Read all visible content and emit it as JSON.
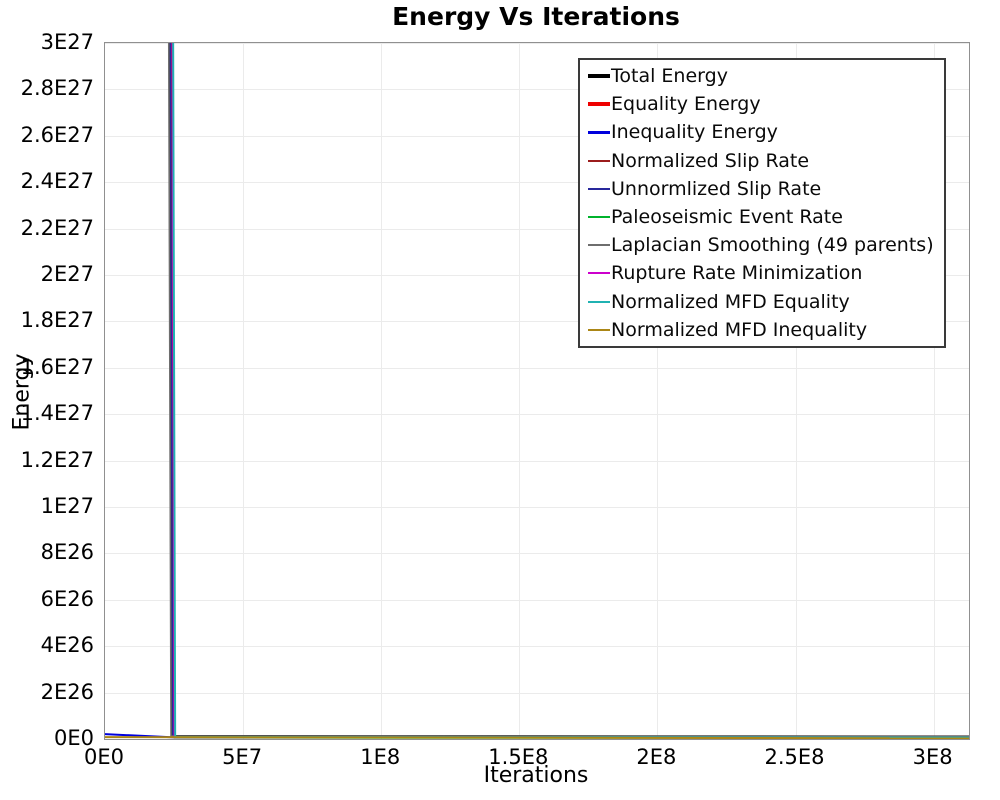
{
  "title": "Energy Vs Iterations",
  "chart_data": {
    "type": "line",
    "title": "Energy Vs Iterations",
    "xlabel": "Iterations",
    "ylabel": "Energy",
    "xlim": [
      0,
      312800000.0
    ],
    "ylim": [
      0,
      3e+27
    ],
    "x_ticks": [
      "0E0",
      "5E7",
      "1E8",
      "1.5E8",
      "2E8",
      "2.5E8",
      "3E8"
    ],
    "y_ticks": [
      "0E0",
      "2E26",
      "4E26",
      "6E26",
      "8E26",
      "1E27",
      "1.2E27",
      "1.4E27",
      "1.6E27",
      "1.8E27",
      "2E27",
      "2.2E27",
      "2.4E27",
      "2.6E27",
      "2.8E27",
      "3E27"
    ],
    "grid": true,
    "legend_position": "top-right-inside",
    "description": "All energy components start above the visible y-range (clipped at 3E27) and drop almost vertically to near zero at roughly 2.3E7 iterations, then stay flat near zero out to about 3.1E8 iterations. Inequality Energy and Normalized MFD Inequality are near zero for the whole run.",
    "drop_iteration_approx": 23000000.0,
    "series": [
      {
        "name": "Total Energy",
        "color": "#000000",
        "width": 2.5,
        "swatch_thickness": 4,
        "points": [
          [
            23300000.0,
            3.3e+27
          ],
          [
            24200000.0,
            1.2e+25
          ],
          [
            312800000.0,
            1e+25
          ]
        ]
      },
      {
        "name": "Equality Energy",
        "color": "#ee0000",
        "width": 2.5,
        "swatch_thickness": 4,
        "points": [
          [
            23900000.0,
            3.3e+27
          ],
          [
            24700000.0,
            1e+25
          ],
          [
            312800000.0,
            8e+24
          ]
        ]
      },
      {
        "name": "Inequality Energy",
        "color": "#0000dd",
        "width": 2.0,
        "swatch_thickness": 3,
        "points": [
          [
            0,
            2.1e+25
          ],
          [
            25000000.0,
            7e+24
          ],
          [
            312800000.0,
            6e+24
          ]
        ]
      },
      {
        "name": "Normalized Slip Rate",
        "color": "#9c1c1c",
        "width": 1.6,
        "swatch_thickness": 2,
        "points": [
          [
            24200000.0,
            3.3e+27
          ],
          [
            25000000.0,
            9e+24
          ],
          [
            312800000.0,
            7e+24
          ]
        ]
      },
      {
        "name": "Unnormlized Slip Rate",
        "color": "#28289c",
        "width": 1.6,
        "swatch_thickness": 2,
        "points": [
          [
            23600000.0,
            3.3e+27
          ],
          [
            24500000.0,
            1.1e+25
          ],
          [
            312800000.0,
            9e+24
          ]
        ]
      },
      {
        "name": "Paleoseismic Event Rate",
        "color": "#00b32c",
        "width": 1.6,
        "swatch_thickness": 2,
        "points": [
          [
            24400000.0,
            3.3e+27
          ],
          [
            25200000.0,
            5e+24
          ],
          [
            312800000.0,
            4e+24
          ]
        ]
      },
      {
        "name": "Laplacian Smoothing (49 parents)",
        "color": "#6e6e6e",
        "width": 1.6,
        "swatch_thickness": 2,
        "points": [
          [
            23000000.0,
            3.3e+27
          ],
          [
            23900000.0,
            1.3e+25
          ],
          [
            312800000.0,
            1.1e+25
          ]
        ]
      },
      {
        "name": "Rupture Rate Minimization",
        "color": "#cc00cc",
        "width": 1.6,
        "swatch_thickness": 2,
        "points": [
          [
            24300000.0,
            3.3e+27
          ],
          [
            25100000.0,
            6e+24
          ],
          [
            312800000.0,
            5e+24
          ]
        ]
      },
      {
        "name": "Normalized MFD Equality",
        "color": "#20b2b2",
        "width": 2.0,
        "swatch_thickness": 2,
        "points": [
          [
            24600000.0,
            3.3e+27
          ],
          [
            25400000.0,
            8e+24
          ],
          [
            312800000.0,
            6e+24
          ]
        ]
      },
      {
        "name": "Normalized MFD Inequality",
        "color": "#ab8616",
        "width": 2.0,
        "swatch_thickness": 2,
        "points": [
          [
            0,
            8e+24
          ],
          [
            312800000.0,
            3e+24
          ]
        ]
      }
    ]
  }
}
